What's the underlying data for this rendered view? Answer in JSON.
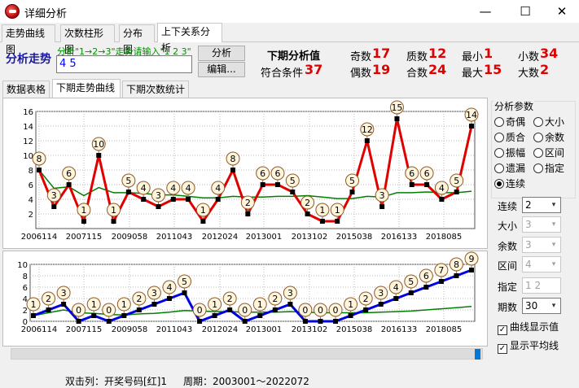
{
  "window": {
    "title": "详细分析",
    "minimize": "—",
    "maximize": "☐",
    "close": "✕"
  },
  "main_tabs": [
    "走势曲线图",
    "次数柱形图",
    "分布图",
    "上下关系分析"
  ],
  "analysis": {
    "label": "分析走势",
    "hint": "分析\"1→2→3\"走势请输入\"1 2 3\"",
    "input_value": "4 5",
    "analyze_button": "分析",
    "edit_button": "编辑..."
  },
  "stats": {
    "next_value_label": "下期分析值",
    "match_label": "符合条件",
    "match_value": "37",
    "odd_label": "奇数",
    "odd_value": "17",
    "even_label": "偶数",
    "even_value": "19",
    "prime_label": "质数",
    "prime_value": "12",
    "composite_label": "合数",
    "composite_value": "24",
    "min_label": "最小",
    "min_value": "1",
    "max_label": "最大",
    "max_value": "15",
    "small_label": "小数",
    "small_value": "34",
    "big_label": "大数",
    "big_value": "2"
  },
  "sub_tabs": [
    "数据表格",
    "下期走势曲线",
    "下期次数统计"
  ],
  "colors": {
    "series1": "#e00000",
    "series2": "#0000e0",
    "average": "#008000",
    "accent": "#e00000"
  },
  "chart_data": [
    {
      "type": "line",
      "x_ticks": [
        "2006114",
        "2007115",
        "2009058",
        "2011043",
        "2012024",
        "2013001",
        "2013102",
        "2015038",
        "2016133",
        "2018085"
      ],
      "y_ticks": [
        2,
        4,
        6,
        8,
        10,
        12,
        14,
        16
      ],
      "ylim": [
        0,
        16
      ],
      "values": [
        8,
        3,
        6,
        1,
        10,
        1,
        5,
        4,
        3,
        4,
        4,
        1,
        4,
        8,
        2,
        6,
        6,
        5,
        2,
        1,
        1,
        5,
        12,
        3,
        15,
        6,
        6,
        4,
        5,
        14
      ],
      "average": [
        8,
        5.5,
        5.7,
        4.5,
        5.6,
        4.9,
        4.9,
        4.8,
        4.6,
        4.6,
        4.4,
        4.2,
        4.2,
        4.4,
        4.3,
        4.3,
        4.4,
        4.4,
        4.5,
        4.3,
        4.1,
        4.1,
        4.4,
        4.3,
        4.9,
        4.9,
        5.0,
        4.9,
        4.9,
        5.1
      ]
    },
    {
      "type": "line",
      "x_ticks": [
        "2006114",
        "2007115",
        "2009058",
        "2011043",
        "2012024",
        "2013001",
        "2013102",
        "2015038",
        "2016133",
        "2018085"
      ],
      "y_ticks": [
        0,
        2,
        4,
        6,
        8,
        10
      ],
      "ylim": [
        0,
        10
      ],
      "values": [
        1,
        2,
        3,
        0,
        1,
        0,
        1,
        2,
        3,
        4,
        5,
        0,
        1,
        2,
        0,
        1,
        2,
        3,
        0,
        0,
        0,
        1,
        2,
        3,
        4,
        5,
        6,
        7,
        8,
        9
      ],
      "average": [
        1,
        1.5,
        2,
        1.5,
        1.4,
        1.2,
        1.1,
        1.3,
        1.4,
        1.6,
        1.9,
        1.8,
        1.7,
        1.7,
        1.6,
        1.6,
        1.6,
        1.7,
        1.6,
        1.5,
        1.5,
        1.5,
        1.5,
        1.6,
        1.7,
        1.8,
        2.0,
        2.2,
        2.4,
        2.6
      ]
    }
  ],
  "params": {
    "title": "分析参数",
    "radios": [
      "奇偶",
      "大小",
      "质合",
      "余数",
      "振幅",
      "区间",
      "遗漏",
      "指定",
      "连续"
    ],
    "selected": "连续",
    "consecutive_label": "连续",
    "consecutive_value": "2",
    "size_label": "大小",
    "size_value": "3",
    "remainder_label": "余数",
    "remainder_value": "3",
    "interval_label": "区间",
    "interval_value": "4",
    "specify_label": "指定",
    "specify_value": "1 2",
    "periods_label": "期数",
    "periods_value": "30",
    "show_values_label": "曲线显示值",
    "show_average_label": "显示平均线"
  },
  "status": {
    "double_click": "双击列：开奖号码[红]1",
    "period": "周期：2003001～2022072"
  }
}
